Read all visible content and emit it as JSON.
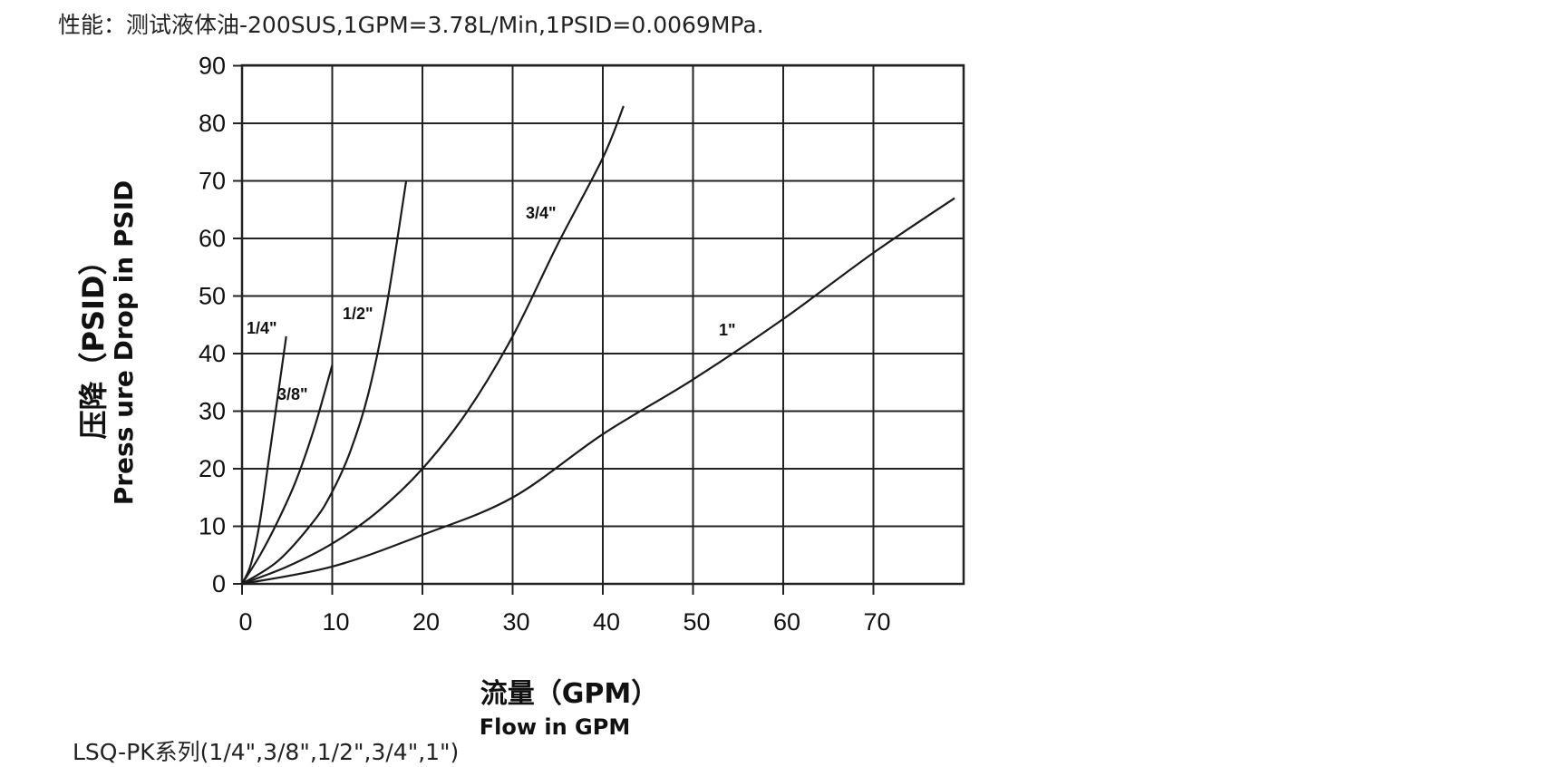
{
  "header": {
    "text": "性能：测试液体油-200SUS,1GPM=3.78L/Min,1PSID=0.0069MPa."
  },
  "footer": {
    "text": "LSQ-PK系列(1/4\",3/8\",1/2\",3/4\",1\")"
  },
  "chart_data": {
    "type": "line",
    "xlabel": "流量（GPM）",
    "xlabel_en": "Flow in GPM",
    "ylabel": "压降（PSID）",
    "ylabel_en": "Press ure Drop in PSID",
    "xlim": [
      0,
      80
    ],
    "ylim": [
      0,
      90
    ],
    "x_ticks": [
      0,
      10,
      20,
      30,
      40,
      50,
      60,
      70
    ],
    "y_ticks": [
      0,
      10,
      20,
      30,
      40,
      50,
      60,
      70,
      80,
      90
    ],
    "grid": true,
    "legend": "none (series labelled on the curves)",
    "series": [
      {
        "name": "1/4\"",
        "points": [
          [
            0,
            0
          ],
          [
            1,
            3.5
          ],
          [
            2,
            11
          ],
          [
            3,
            22
          ],
          [
            4,
            33
          ],
          [
            4.9,
            43
          ]
        ]
      },
      {
        "name": "3/8\"",
        "points": [
          [
            0,
            0
          ],
          [
            2,
            5
          ],
          [
            4,
            11
          ],
          [
            6,
            18
          ],
          [
            8,
            27
          ],
          [
            10,
            38
          ]
        ]
      },
      {
        "name": "1/2\"",
        "points": [
          [
            0,
            0
          ],
          [
            4,
            4
          ],
          [
            8,
            11
          ],
          [
            10,
            16
          ],
          [
            12,
            23
          ],
          [
            14,
            33
          ],
          [
            16,
            48
          ],
          [
            18.2,
            70
          ]
        ]
      },
      {
        "name": "3/4\"",
        "points": [
          [
            0,
            0
          ],
          [
            5,
            3
          ],
          [
            10,
            7
          ],
          [
            15,
            12.5
          ],
          [
            20,
            20
          ],
          [
            25,
            30
          ],
          [
            30,
            43
          ],
          [
            35,
            59
          ],
          [
            40,
            74
          ],
          [
            42.3,
            83
          ]
        ]
      },
      {
        "name": "1\"",
        "points": [
          [
            0,
            0
          ],
          [
            10,
            3
          ],
          [
            20,
            8.5
          ],
          [
            30,
            15
          ],
          [
            40,
            26
          ],
          [
            50,
            35.5
          ],
          [
            60,
            46
          ],
          [
            70,
            57.5
          ],
          [
            79,
            67
          ]
        ]
      }
    ]
  }
}
